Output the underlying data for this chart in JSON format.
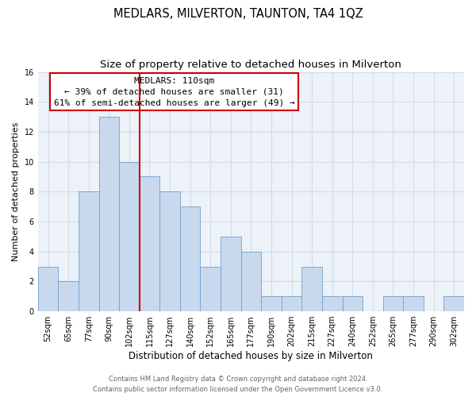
{
  "title": "MEDLARS, MILVERTON, TAUNTON, TA4 1QZ",
  "subtitle": "Size of property relative to detached houses in Milverton",
  "xlabel": "Distribution of detached houses by size in Milverton",
  "ylabel": "Number of detached properties",
  "bar_labels": [
    "52sqm",
    "65sqm",
    "77sqm",
    "90sqm",
    "102sqm",
    "115sqm",
    "127sqm",
    "140sqm",
    "152sqm",
    "165sqm",
    "177sqm",
    "190sqm",
    "202sqm",
    "215sqm",
    "227sqm",
    "240sqm",
    "252sqm",
    "265sqm",
    "277sqm",
    "290sqm",
    "302sqm"
  ],
  "bar_values": [
    3,
    2,
    8,
    13,
    10,
    9,
    8,
    7,
    3,
    5,
    4,
    1,
    1,
    3,
    1,
    1,
    0,
    1,
    1,
    0,
    1
  ],
  "bar_color": "#c8d9ee",
  "bar_edgecolor": "#6fa0cc",
  "vline_color": "#cc0000",
  "annotation_title": "MEDLARS: 110sqm",
  "annotation_line1": "← 39% of detached houses are smaller (31)",
  "annotation_line2": "61% of semi-detached houses are larger (49) →",
  "annotation_box_color": "#ffffff",
  "annotation_box_edgecolor": "#cc0000",
  "ylim": [
    0,
    16
  ],
  "yticks": [
    0,
    2,
    4,
    6,
    8,
    10,
    12,
    14,
    16
  ],
  "grid_color": "#d0dce8",
  "bg_color": "#edf2f8",
  "footer_line1": "Contains HM Land Registry data © Crown copyright and database right 2024.",
  "footer_line2": "Contains public sector information licensed under the Open Government Licence v3.0.",
  "title_fontsize": 10.5,
  "subtitle_fontsize": 9.5,
  "xlabel_fontsize": 8.5,
  "ylabel_fontsize": 8,
  "tick_fontsize": 7,
  "footer_fontsize": 6,
  "ann_fontsize": 8,
  "ann_title_fontsize": 8.5
}
